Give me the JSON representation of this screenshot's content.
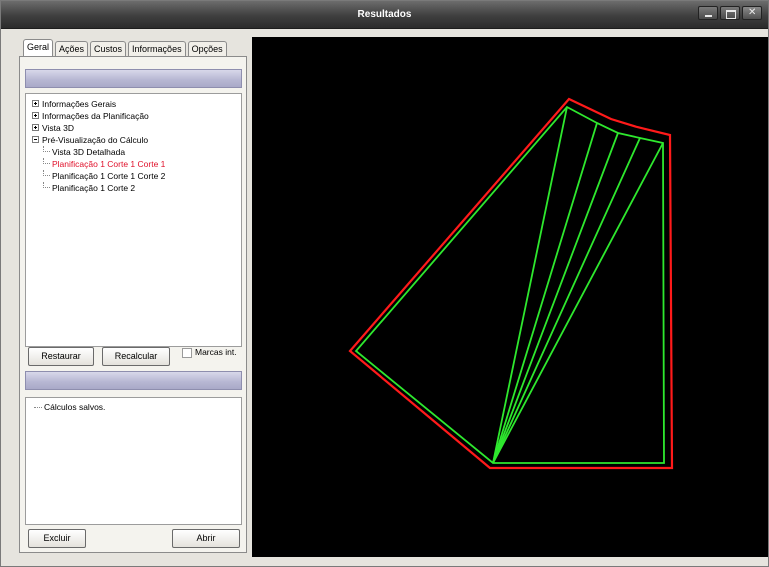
{
  "window": {
    "title": "Resultados"
  },
  "tabs": [
    {
      "label": "Geral",
      "active": true
    },
    {
      "label": "Ações",
      "active": false
    },
    {
      "label": "Custos",
      "active": false
    },
    {
      "label": "Informações",
      "active": false
    },
    {
      "label": "Opções",
      "active": false
    }
  ],
  "tree": {
    "items": [
      {
        "label": "Informações Gerais",
        "expander": "plus"
      },
      {
        "label": "Informações da Planificação",
        "expander": "plus"
      },
      {
        "label": "Vista 3D",
        "expander": "plus"
      },
      {
        "label": "Pré-Visualização do Cálculo",
        "expander": "minus"
      },
      {
        "label": "Vista 3D Detalhada"
      },
      {
        "label": "Planificação 1 Corte 1 Corte 1",
        "selected": true
      },
      {
        "label": "Planificação 1 Corte 1 Corte 2"
      },
      {
        "label": "Planificação 1 Corte 2"
      }
    ]
  },
  "buttons": {
    "restore": "Restaurar",
    "recalculate": "Recalcular",
    "delete": "Excluir",
    "open": "Abrir"
  },
  "checkbox": {
    "label": "Marcas int.",
    "checked": false
  },
  "saved": {
    "items": [
      "Cálculos salvos."
    ]
  },
  "colors": {
    "outline_red": "#ff1a1a",
    "pattern_green": "#2ee82e",
    "selected_text": "#e0102a",
    "viewport_bg": "#000000"
  }
}
